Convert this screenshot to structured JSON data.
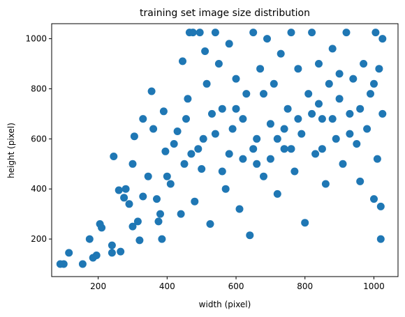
{
  "chart_data": {
    "type": "scatter",
    "title": "training set image size distribution",
    "xlabel": "width (pixel)",
    "ylabel": "height (pixel)",
    "xlim": [
      65,
      1070
    ],
    "ylim": [
      50,
      1060
    ],
    "xticks": [
      200,
      400,
      600,
      800,
      1000
    ],
    "yticks": [
      200,
      400,
      600,
      800,
      1000
    ],
    "grid": false,
    "legend": "none",
    "marker_color": "#1f77b4",
    "series": [
      {
        "points": [
          [
            90,
            100
          ],
          [
            100,
            100
          ],
          [
            115,
            145
          ],
          [
            155,
            100
          ],
          [
            175,
            200
          ],
          [
            185,
            125
          ],
          [
            195,
            135
          ],
          [
            205,
            260
          ],
          [
            210,
            245
          ],
          [
            240,
            145
          ],
          [
            240,
            175
          ],
          [
            245,
            530
          ],
          [
            260,
            395
          ],
          [
            265,
            150
          ],
          [
            275,
            365
          ],
          [
            280,
            400
          ],
          [
            290,
            340
          ],
          [
            300,
            250
          ],
          [
            300,
            500
          ],
          [
            305,
            610
          ],
          [
            315,
            270
          ],
          [
            320,
            195
          ],
          [
            330,
            370
          ],
          [
            330,
            680
          ],
          [
            345,
            450
          ],
          [
            355,
            790
          ],
          [
            360,
            640
          ],
          [
            370,
            360
          ],
          [
            375,
            270
          ],
          [
            380,
            300
          ],
          [
            385,
            200
          ],
          [
            390,
            710
          ],
          [
            395,
            550
          ],
          [
            400,
            450
          ],
          [
            410,
            420
          ],
          [
            420,
            580
          ],
          [
            430,
            630
          ],
          [
            440,
            300
          ],
          [
            445,
            910
          ],
          [
            450,
            500
          ],
          [
            455,
            680
          ],
          [
            460,
            760
          ],
          [
            465,
            1025
          ],
          [
            475,
            1025
          ],
          [
            480,
            350
          ],
          [
            490,
            560
          ],
          [
            495,
            1025
          ],
          [
            505,
            600
          ],
          [
            510,
            950
          ],
          [
            515,
            820
          ],
          [
            525,
            260
          ],
          [
            530,
            700
          ],
          [
            540,
            1025
          ],
          [
            550,
            900
          ],
          [
            560,
            720
          ],
          [
            570,
            400
          ],
          [
            580,
            980
          ],
          [
            590,
            640
          ],
          [
            600,
            840
          ],
          [
            610,
            320
          ],
          [
            620,
            520
          ],
          [
            630,
            780
          ],
          [
            640,
            215
          ],
          [
            650,
            1025
          ],
          [
            660,
            600
          ],
          [
            670,
            880
          ],
          [
            680,
            450
          ],
          [
            690,
            1000
          ],
          [
            700,
            660
          ],
          [
            710,
            820
          ],
          [
            720,
            380
          ],
          [
            730,
            940
          ],
          [
            740,
            560
          ],
          [
            750,
            720
          ],
          [
            760,
            1025
          ],
          [
            770,
            470
          ],
          [
            780,
            880
          ],
          [
            790,
            620
          ],
          [
            800,
            265
          ],
          [
            810,
            780
          ],
          [
            820,
            1025
          ],
          [
            830,
            540
          ],
          [
            840,
            900
          ],
          [
            850,
            680
          ],
          [
            860,
            420
          ],
          [
            870,
            820
          ],
          [
            880,
            960
          ],
          [
            890,
            600
          ],
          [
            900,
            760
          ],
          [
            910,
            500
          ],
          [
            920,
            1025
          ],
          [
            930,
            700
          ],
          [
            940,
            840
          ],
          [
            950,
            580
          ],
          [
            960,
            430
          ],
          [
            970,
            900
          ],
          [
            980,
            640
          ],
          [
            990,
            780
          ],
          [
            1000,
            360
          ],
          [
            1005,
            1025
          ],
          [
            1010,
            520
          ],
          [
            1015,
            880
          ],
          [
            1020,
            200
          ],
          [
            1020,
            330
          ],
          [
            1025,
            700
          ],
          [
            1025,
            1000
          ],
          [
            470,
            540
          ],
          [
            560,
            470
          ],
          [
            650,
            560
          ],
          [
            720,
            600
          ],
          [
            780,
            680
          ],
          [
            850,
            560
          ],
          [
            930,
            620
          ],
          [
            600,
            720
          ],
          [
            680,
            780
          ],
          [
            540,
            620
          ],
          [
            620,
            680
          ],
          [
            700,
            520
          ],
          [
            760,
            560
          ],
          [
            840,
            740
          ],
          [
            900,
            860
          ],
          [
            960,
            720
          ],
          [
            1000,
            820
          ],
          [
            500,
            480
          ],
          [
            580,
            540
          ],
          [
            660,
            500
          ],
          [
            740,
            640
          ],
          [
            820,
            700
          ],
          [
            880,
            680
          ]
        ]
      }
    ]
  }
}
